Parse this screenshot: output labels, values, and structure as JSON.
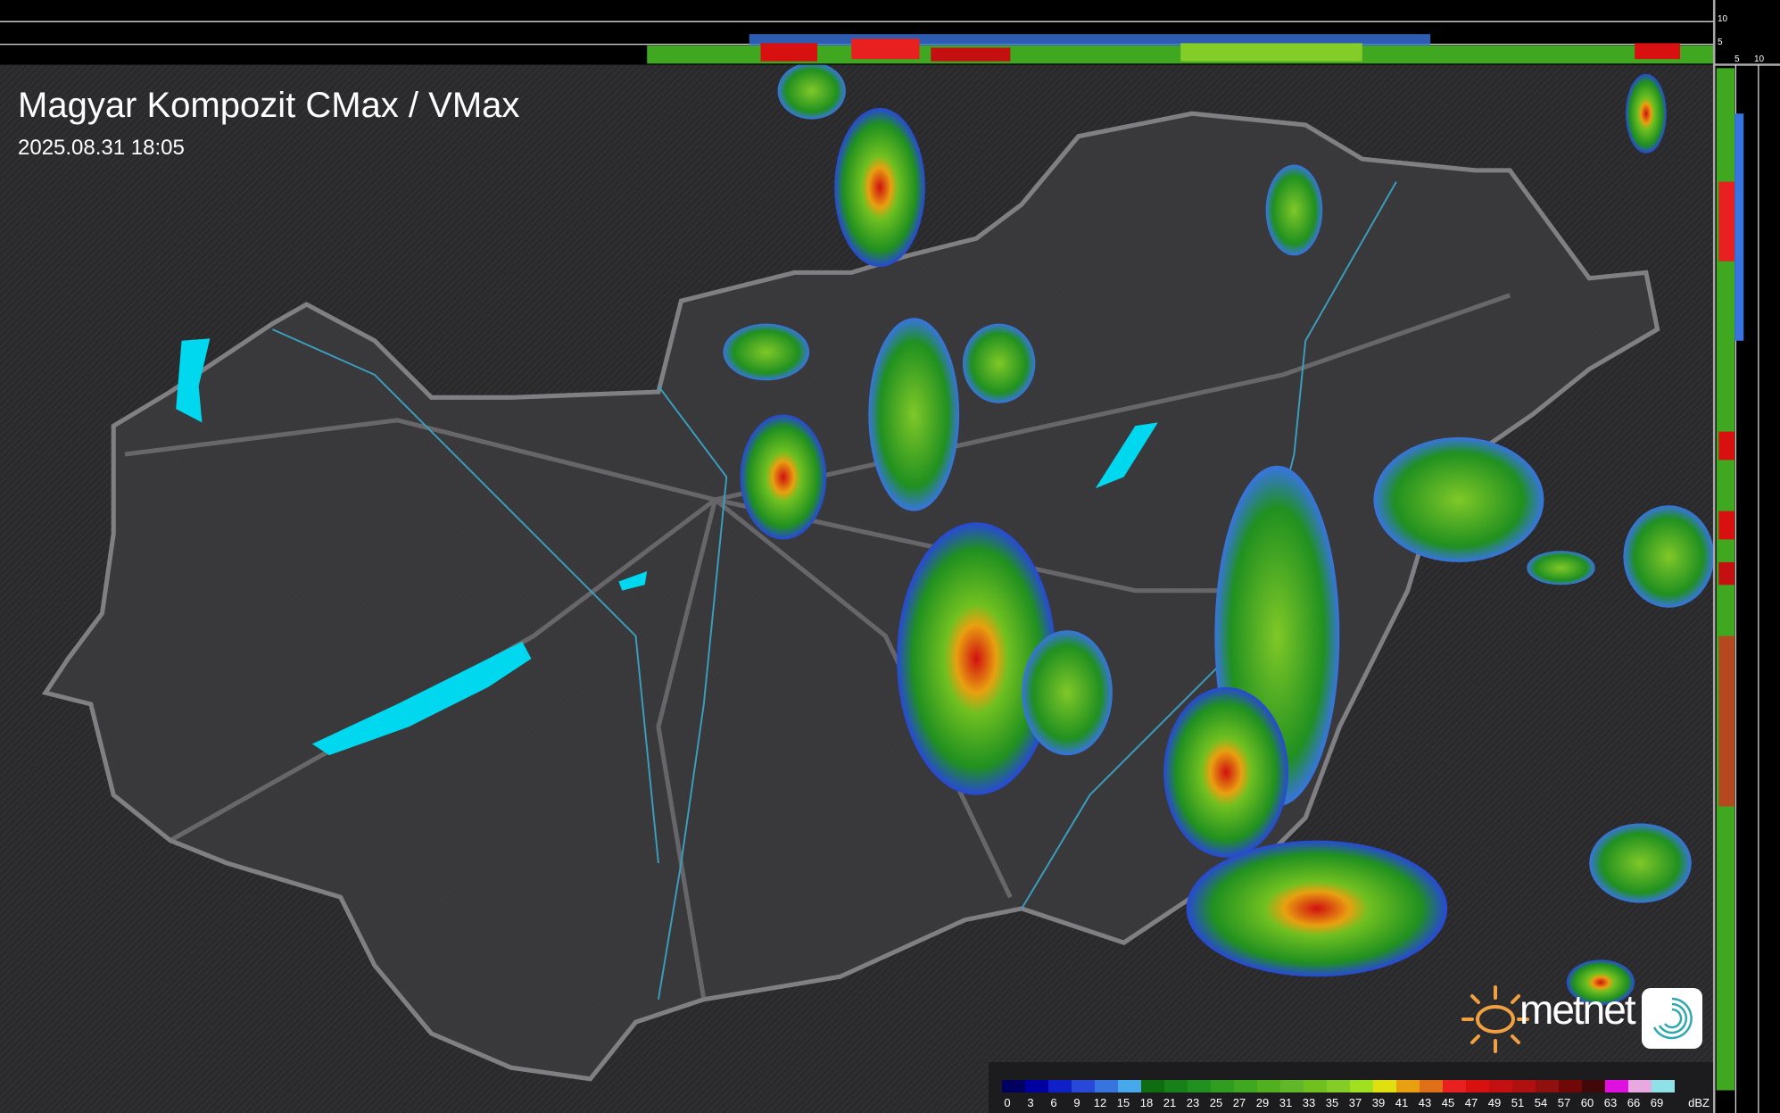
{
  "header": {
    "title": "Magyar Kompozit CMax / VMax",
    "timestamp": "2025.08.31 18:05"
  },
  "profile_axes": {
    "top_ticks": [
      "10",
      "5"
    ],
    "right_ticks": [
      "5",
      "10"
    ]
  },
  "legend": {
    "unit": "dBZ",
    "levels": [
      "0",
      "3",
      "6",
      "9",
      "12",
      "15",
      "18",
      "21",
      "23",
      "25",
      "27",
      "29",
      "31",
      "33",
      "35",
      "37",
      "39",
      "41",
      "43",
      "45",
      "47",
      "49",
      "51",
      "54",
      "57",
      "60",
      "63",
      "66",
      "69"
    ],
    "colors": [
      "#000060",
      "#0000a0",
      "#1020c8",
      "#2848d8",
      "#3874e0",
      "#48a8ec",
      "#106c10",
      "#188018",
      "#209020",
      "#309c20",
      "#40a820",
      "#50b020",
      "#60b828",
      "#70c020",
      "#84cc28",
      "#a0e020",
      "#e0e010",
      "#e8a010",
      "#e07018",
      "#e82020",
      "#d81010",
      "#c41010",
      "#b01010",
      "#901010",
      "#700808",
      "#400808",
      "#e010e0",
      "#e8a8e0",
      "#90e0e8"
    ]
  },
  "brand": {
    "name": "metnet",
    "sun_color": "#f0a040",
    "swirl_color": "#30a8b0"
  }
}
